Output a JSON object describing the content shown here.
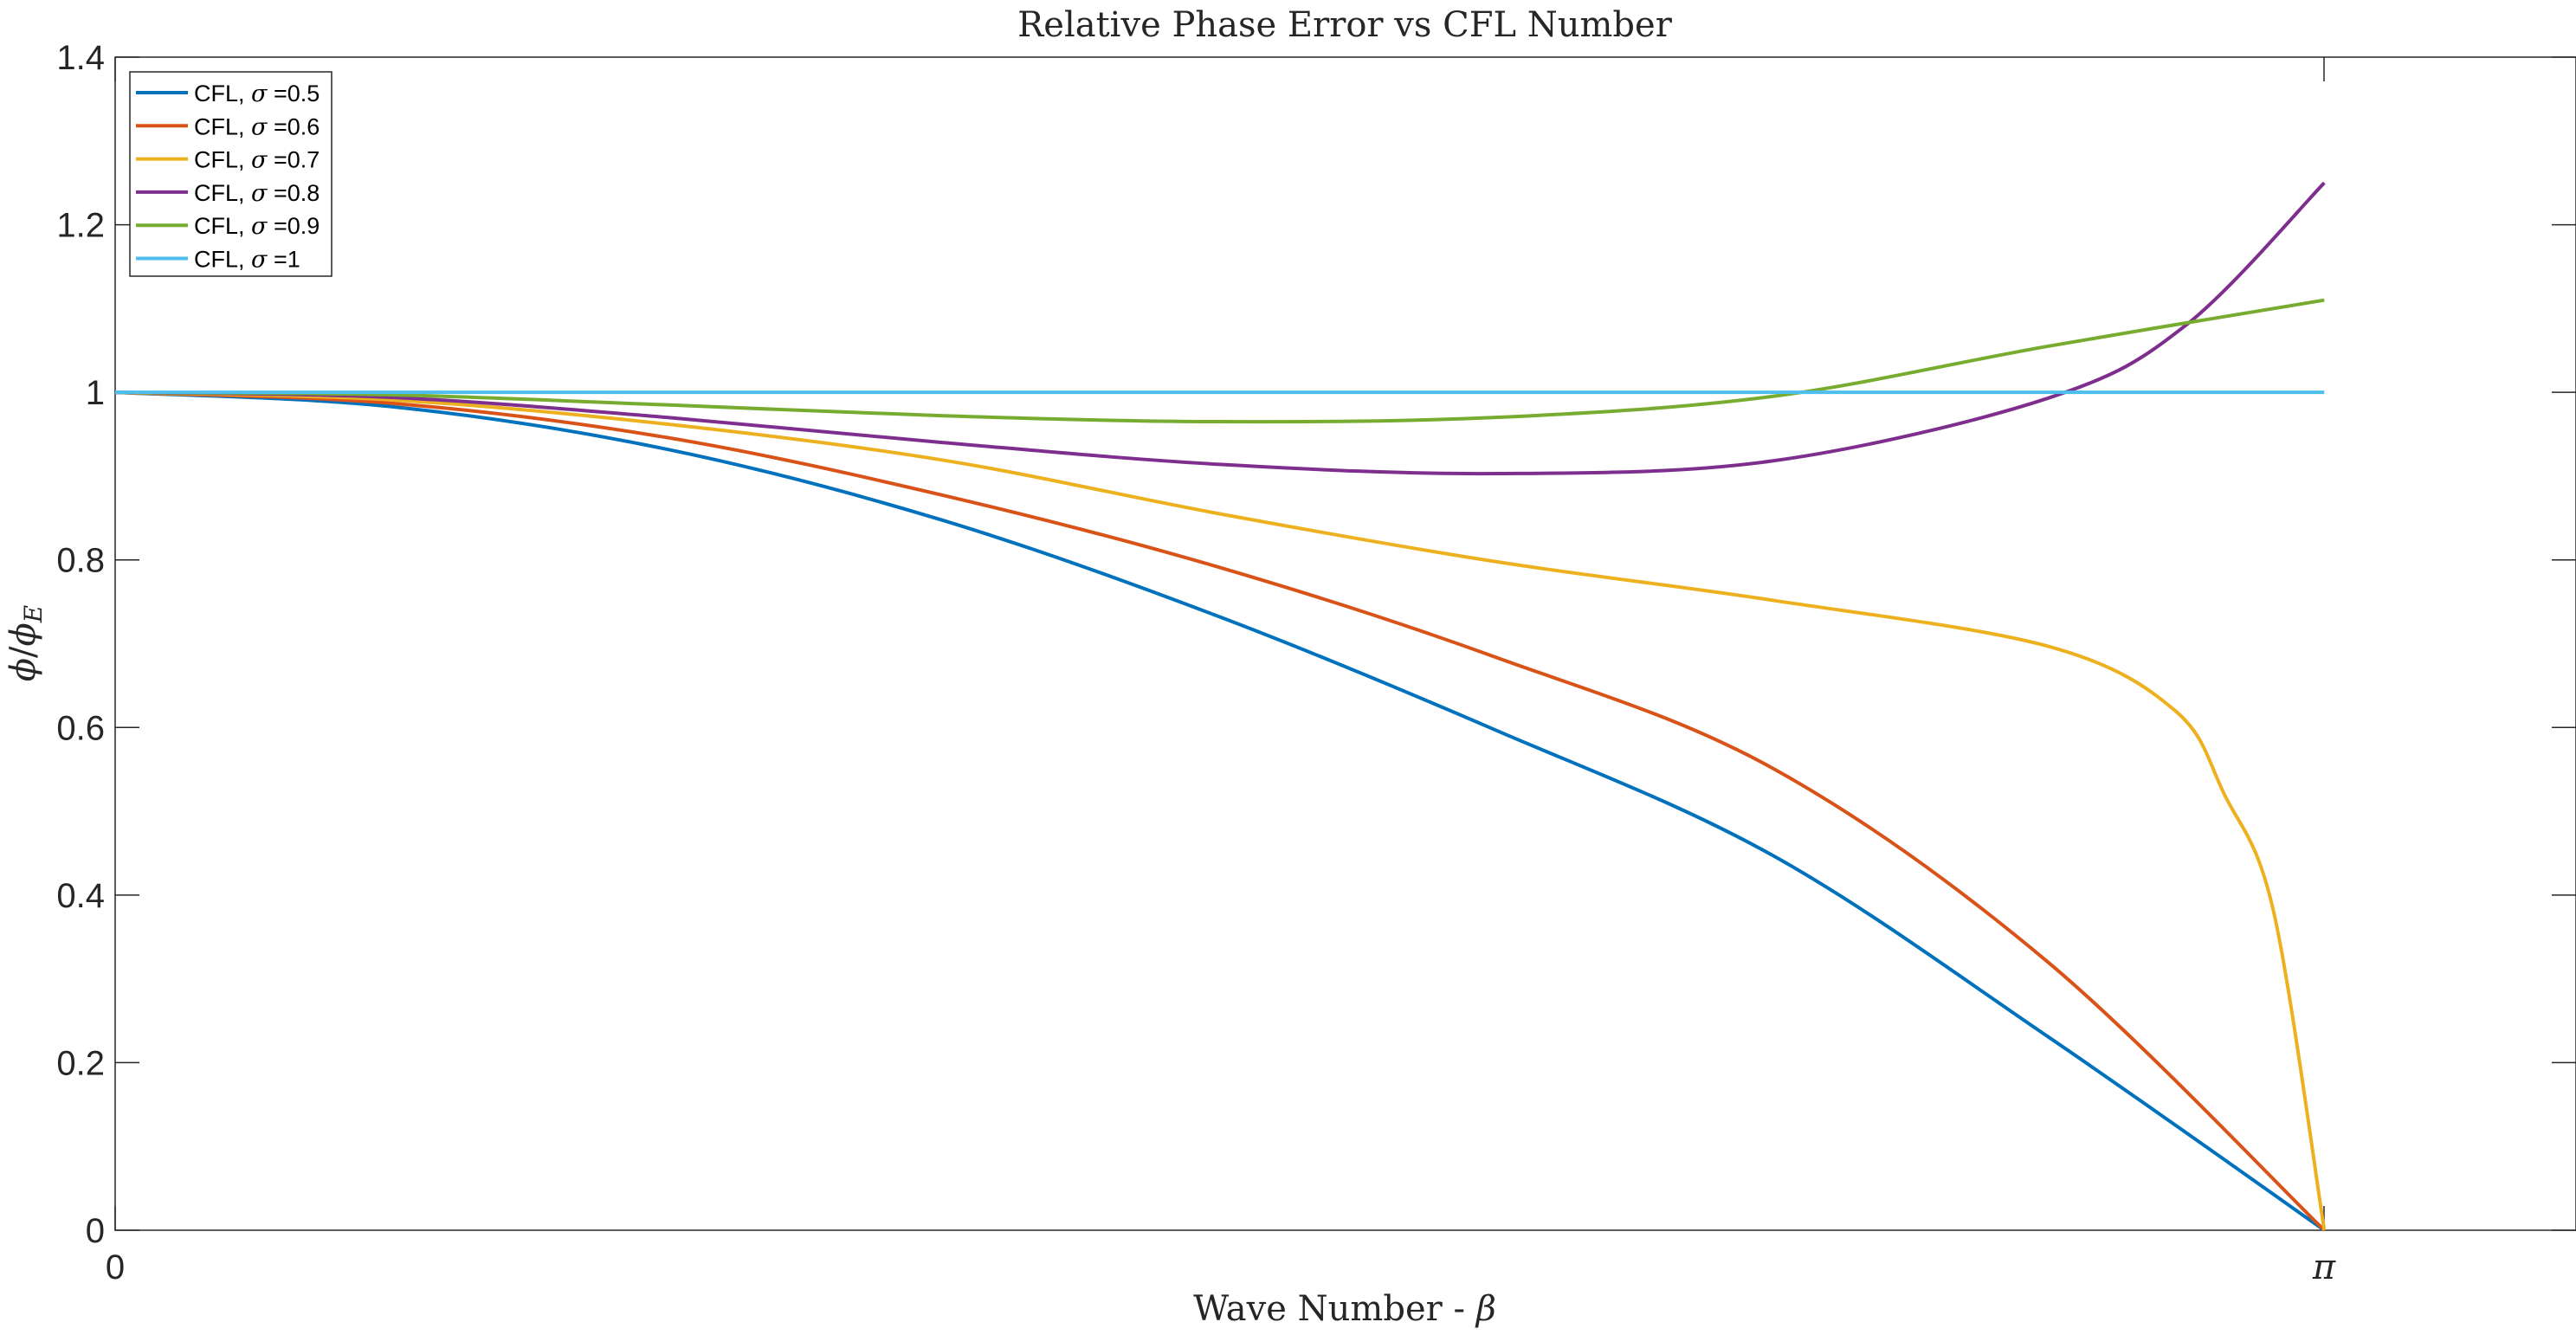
{
  "chart_data": {
    "type": "line",
    "title": "Relative Phase Error vs CFL Number",
    "xlabel_text": "Wave Number - ",
    "xlabel_symbol": "β",
    "ylabel_num": "ϕ",
    "ylabel_slash": "/",
    "ylabel_den": "ϕ",
    "ylabel_sub": "E",
    "xlim": [
      0,
      3.5
    ],
    "ylim": [
      0,
      1.4
    ],
    "xticks": [
      {
        "value": 0,
        "label": "0"
      },
      {
        "value": 3.14159,
        "label": "π"
      }
    ],
    "yticks": [
      {
        "value": 0,
        "label": "0"
      },
      {
        "value": 0.2,
        "label": "0.2"
      },
      {
        "value": 0.4,
        "label": "0.4"
      },
      {
        "value": 0.6,
        "label": "0.6"
      },
      {
        "value": 0.8,
        "label": "0.8"
      },
      {
        "value": 1.0,
        "label": "1"
      },
      {
        "value": 1.2,
        "label": "1.2"
      },
      {
        "value": 1.4,
        "label": "1.4"
      }
    ],
    "grid": false,
    "legend_position": "top-left",
    "series": [
      {
        "name_prefix": "CFL, ",
        "name_symbol": "σ",
        "name_suffix": " =0.5",
        "color": "#0072BD",
        "points": [
          [
            0,
            1.0
          ],
          [
            0.392,
            0.983
          ],
          [
            0.785,
            0.932
          ],
          [
            1.178,
            0.847
          ],
          [
            1.571,
            0.732
          ],
          [
            1.963,
            0.597
          ],
          [
            2.356,
            0.448
          ],
          [
            2.749,
            0.231
          ],
          [
            3.142,
            0.0
          ]
        ]
      },
      {
        "name_prefix": "CFL, ",
        "name_symbol": "σ",
        "name_suffix": " =0.6",
        "color": "#D95319",
        "points": [
          [
            0,
            1.0
          ],
          [
            0.392,
            0.987
          ],
          [
            0.785,
            0.946
          ],
          [
            1.178,
            0.877
          ],
          [
            1.571,
            0.791
          ],
          [
            1.963,
            0.684
          ],
          [
            2.356,
            0.552
          ],
          [
            2.749,
            0.32
          ],
          [
            3.142,
            0.0
          ]
        ]
      },
      {
        "name_prefix": "CFL, ",
        "name_symbol": "σ",
        "name_suffix": " =0.7",
        "color": "#EDB120",
        "points": [
          [
            0,
            1.0
          ],
          [
            0.392,
            0.991
          ],
          [
            0.785,
            0.962
          ],
          [
            1.178,
            0.919
          ],
          [
            1.571,
            0.855
          ],
          [
            1.963,
            0.798
          ],
          [
            2.356,
            0.752
          ],
          [
            2.749,
            0.697
          ],
          [
            2.93,
            0.62
          ],
          [
            3.0,
            0.52
          ],
          [
            3.07,
            0.38
          ],
          [
            3.142,
            0.0
          ]
        ]
      },
      {
        "name_prefix": "CFL, ",
        "name_symbol": "σ",
        "name_suffix": " =0.8",
        "color": "#7E2F8E",
        "points": [
          [
            0,
            1.0
          ],
          [
            0.392,
            0.994
          ],
          [
            0.785,
            0.97
          ],
          [
            1.178,
            0.94
          ],
          [
            1.571,
            0.914
          ],
          [
            1.963,
            0.903
          ],
          [
            2.356,
            0.918
          ],
          [
            2.749,
            0.993
          ],
          [
            2.945,
            1.08
          ],
          [
            3.142,
            1.25
          ]
        ]
      },
      {
        "name_prefix": "CFL, ",
        "name_symbol": "σ",
        "name_suffix": " =0.9",
        "color": "#77AC30",
        "points": [
          [
            0,
            1.0
          ],
          [
            0.392,
            0.997
          ],
          [
            0.785,
            0.985
          ],
          [
            1.178,
            0.972
          ],
          [
            1.571,
            0.965
          ],
          [
            1.963,
            0.97
          ],
          [
            2.356,
            0.995
          ],
          [
            2.749,
            1.055
          ],
          [
            3.142,
            1.11
          ]
        ]
      },
      {
        "name_prefix": "CFL, ",
        "name_symbol": "σ",
        "name_suffix": " =1",
        "color": "#4DBEEE",
        "points": [
          [
            0,
            1.0
          ],
          [
            1.571,
            1.0
          ],
          [
            3.142,
            1.0
          ]
        ]
      }
    ]
  }
}
